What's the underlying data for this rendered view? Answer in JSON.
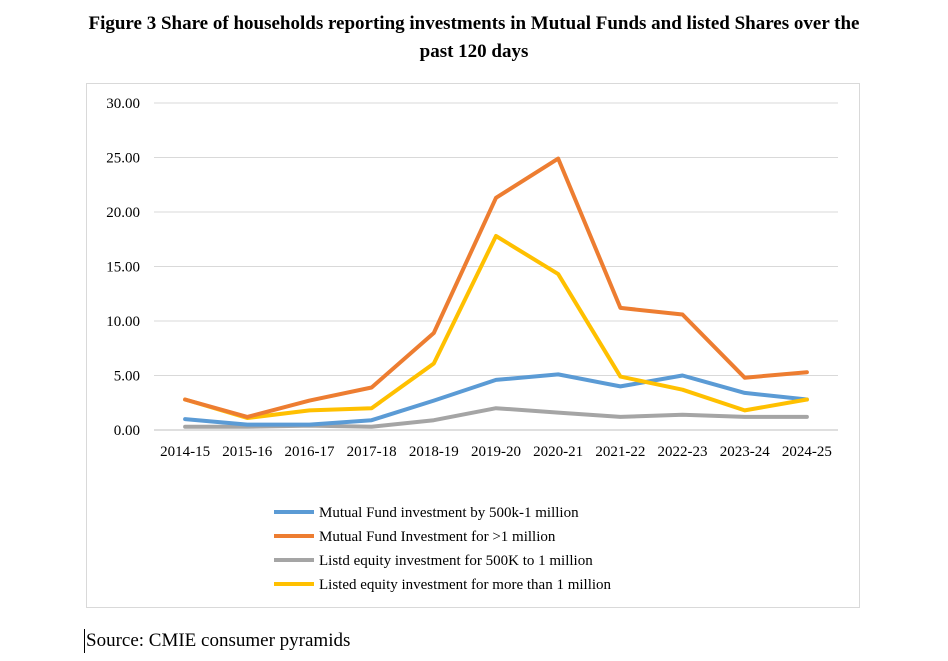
{
  "figure": {
    "title_line1": "Figure 3 Share of households reporting investments in Mutual Funds and listed Shares over the",
    "title_line2": "past 120 days",
    "source": "Source: CMIE consumer pyramids"
  },
  "chart_data": {
    "type": "line",
    "title": "Figure 3 Share of households reporting investments in Mutual Funds and listed Shares over the past 120 days",
    "xlabel": "",
    "ylabel": "",
    "ylim": [
      0,
      30
    ],
    "yticks": [
      "0.00",
      "5.00",
      "10.00",
      "15.00",
      "20.00",
      "25.00",
      "30.00"
    ],
    "grid": true,
    "legend_position": "bottom",
    "categories": [
      "2014-15",
      "2015-16",
      "2016-17",
      "2017-18",
      "2018-19",
      "2019-20",
      "2020-21",
      "2021-22",
      "2022-23",
      "2023-24",
      "2024-25"
    ],
    "series": [
      {
        "name": "Mutual Fund investment by 500k-1 million",
        "color": "#5b9bd5",
        "values": [
          1.0,
          0.5,
          0.5,
          0.9,
          2.7,
          4.6,
          5.1,
          4.0,
          5.0,
          3.4,
          2.8
        ]
      },
      {
        "name": "Mutual Fund Investment for >1 million",
        "color": "#ed7d31",
        "values": [
          2.8,
          1.2,
          2.7,
          3.9,
          8.9,
          21.3,
          24.9,
          11.2,
          10.6,
          4.8,
          5.3
        ]
      },
      {
        "name": "Listd equity investment for 500K to 1 million",
        "color": "#a5a5a5",
        "values": [
          0.3,
          0.3,
          0.4,
          0.3,
          0.9,
          2.0,
          1.6,
          1.2,
          1.4,
          1.2,
          1.2
        ]
      },
      {
        "name": "Listed equity investment for more than 1 million",
        "color": "#ffc000",
        "values": [
          2.8,
          1.1,
          1.8,
          2.0,
          6.1,
          17.8,
          14.3,
          4.9,
          3.7,
          1.8,
          2.8
        ]
      }
    ]
  }
}
